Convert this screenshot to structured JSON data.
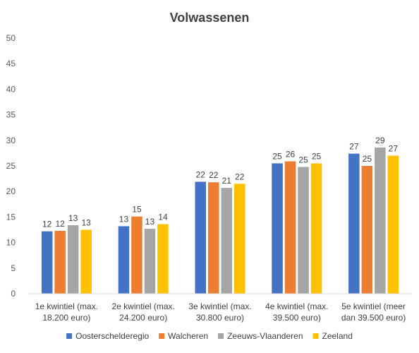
{
  "chart_data": {
    "type": "bar",
    "title": "Volwassenen",
    "xlabel": "",
    "ylabel": "",
    "ylim": [
      0,
      50
    ],
    "yticks": [
      0,
      5,
      10,
      15,
      20,
      25,
      30,
      35,
      40,
      45,
      50
    ],
    "grid": false,
    "legend_position": "bottom",
    "categories": [
      [
        "1e kwintiel (max.",
        "18.200 euro)"
      ],
      [
        "2e kwintiel (max.",
        "24.200 euro)"
      ],
      [
        "3e kwintiel (max.",
        "30.800 euro)"
      ],
      [
        "4e kwintiel (max.",
        "39.500 euro)"
      ],
      [
        "5e kwintiel (meer",
        "dan 39.500 euro)"
      ]
    ],
    "series": [
      {
        "name": "Oosterschelderegio",
        "color": "#4472C4",
        "values": [
          12.2,
          13.2,
          21.9,
          25.5,
          27.4
        ],
        "labels": [
          "12",
          "13",
          "22",
          "25",
          "27"
        ]
      },
      {
        "name": "Walcheren",
        "color": "#ED7D31",
        "values": [
          12.3,
          15.1,
          21.8,
          25.9,
          25.0
        ],
        "labels": [
          "12",
          "15",
          "22",
          "26",
          "25"
        ]
      },
      {
        "name": "Zeeuws-Vlaanderen",
        "color": "#A5A5A5",
        "values": [
          13.4,
          12.7,
          20.7,
          24.8,
          28.6
        ],
        "labels": [
          "13",
          "13",
          "21",
          "25",
          "29"
        ]
      },
      {
        "name": "Zeeland",
        "color": "#FFC000",
        "values": [
          12.5,
          13.6,
          21.5,
          25.5,
          27.0
        ],
        "labels": [
          "13",
          "14",
          "22",
          "25",
          "27"
        ]
      }
    ]
  }
}
